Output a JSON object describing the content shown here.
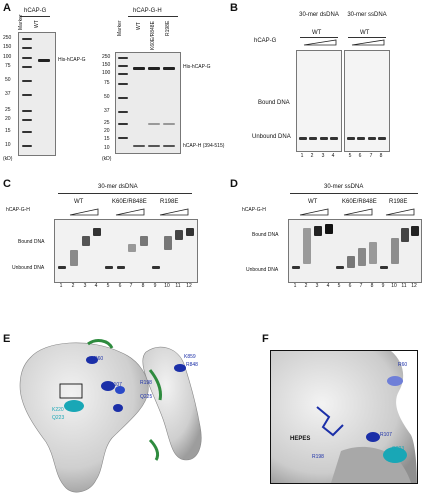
{
  "panels": {
    "A": {
      "label": "A",
      "left_gel": {
        "header": "hCAP-G",
        "lanes": [
          "Marker",
          "WT"
        ]
      },
      "right_gel": {
        "header": "hCAP-G-H",
        "lanes": [
          "Marker",
          "WT",
          "K60E/R848E",
          "R198E"
        ]
      },
      "marker_kd": [
        "250",
        "150",
        "100",
        "75",
        "50",
        "37",
        "25",
        "20",
        "15",
        "10"
      ],
      "kd_unit": "(kD)",
      "labels": {
        "his_g": "His-hCAP-G",
        "his_g_right": "His-hCAP-G",
        "hcap_h": "hCAP-H (394-515)"
      }
    },
    "B": {
      "label": "B",
      "row_label": "hCAP-G",
      "groups": [
        {
          "title": "30-mer dsDNA",
          "genotype": "WT"
        },
        {
          "title": "30-mer ssDNA",
          "genotype": "WT"
        }
      ],
      "bound": "Bound DNA",
      "unbound": "Unbound DNA",
      "lane_numbers": [
        "1",
        "2",
        "3",
        "4",
        "5",
        "6",
        "7",
        "8"
      ]
    },
    "C": {
      "label": "C",
      "title": "30-mer dsDNA",
      "row_label": "hCAP-G-H",
      "groups": [
        "WT",
        "K60E/R848E",
        "R198E"
      ],
      "bound": "Bound DNA",
      "unbound": "Unbound DNA",
      "lane_numbers": [
        "1",
        "2",
        "3",
        "4",
        "5",
        "6",
        "7",
        "8",
        "9",
        "10",
        "11",
        "12"
      ]
    },
    "D": {
      "label": "D",
      "title": "30-mer ssDNA",
      "row_label": "hCAP-G-H",
      "groups": [
        "WT",
        "K60E/R848E",
        "R198E"
      ],
      "bound": "Bound DNA",
      "unbound": "Unbound DNA",
      "lane_numbers": [
        "1",
        "2",
        "3",
        "4",
        "5",
        "6",
        "7",
        "8",
        "9",
        "10",
        "11",
        "12"
      ]
    },
    "E": {
      "label": "E",
      "residues": {
        "r60": "R60",
        "r107": "R107",
        "r198": "R198",
        "q225": "Q225",
        "k859": "K859",
        "r848": "R848",
        "k220": "K220",
        "q223": "Q223"
      }
    },
    "F": {
      "label": "F",
      "residues": {
        "r60": "R60",
        "r107": "R107",
        "r198": "R198",
        "q223": "Q223"
      },
      "ligand": "HEPES"
    }
  },
  "colors": {
    "blue_residue": "#1b2fa8",
    "cyan_residue": "#19a7b6",
    "green_loop": "#2e8b3e",
    "surface": "#d9d9d9"
  }
}
